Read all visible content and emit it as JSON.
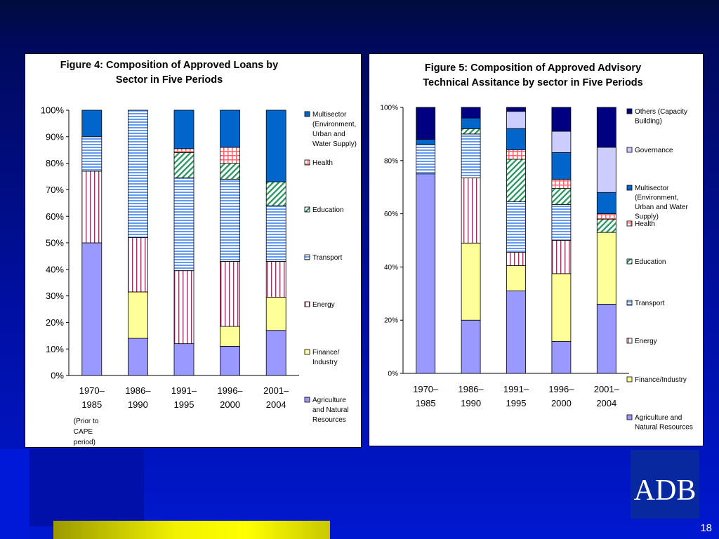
{
  "slide": {
    "number": "18",
    "logo_text": "ADB"
  },
  "chart_data": [
    {
      "type": "bar",
      "stacked": true,
      "title": "Figure 4: Composition of Approved Loans by Sector in Five Periods",
      "title_lines": [
        "Figure 4: Composition of Approved Loans by",
        "Sector in Five Periods"
      ],
      "categories": [
        "1970–1985",
        "1986–1990",
        "1991–1995",
        "1996–2000",
        "2001–2004"
      ],
      "category_lines": [
        [
          "1970–",
          "1985"
        ],
        [
          "1986–",
          "1990"
        ],
        [
          "1991–",
          "1995"
        ],
        [
          "1996–",
          "2000"
        ],
        [
          "2001–",
          "2004"
        ]
      ],
      "category_note": [
        "(Prior to",
        "CAPE",
        "period)"
      ],
      "ylim": [
        0,
        100
      ],
      "yticks": [
        "0%",
        "10%",
        "20%",
        "30%",
        "40%",
        "50%",
        "60%",
        "70%",
        "80%",
        "90%",
        "100%"
      ],
      "grid": false,
      "legend_position": "right",
      "series": [
        {
          "name": "Agriculture and Natural Resources",
          "legend_lines": [
            "Agriculture",
            "and Natural",
            "Resources"
          ],
          "color": "#9999ff",
          "pattern": "solid",
          "values": [
            50,
            14,
            12,
            11,
            17
          ]
        },
        {
          "name": "Finance/ Industry",
          "legend_lines": [
            "Finance/",
            "Industry"
          ],
          "color": "#ffff99",
          "pattern": "solid",
          "values": [
            0,
            17.5,
            0,
            7.5,
            12.5
          ]
        },
        {
          "name": "Energy",
          "legend_lines": [
            "Energy"
          ],
          "color": "#993366",
          "pattern": "vlines",
          "values": [
            27,
            20.5,
            27.5,
            24.5,
            13.5
          ]
        },
        {
          "name": "Transport",
          "legend_lines": [
            "Transport"
          ],
          "color": "#6699ee",
          "pattern": "hlines",
          "values": [
            13,
            48,
            35,
            31,
            21
          ]
        },
        {
          "name": "Education",
          "legend_lines": [
            "Education"
          ],
          "color": "#339966",
          "pattern": "diag",
          "values": [
            0,
            0,
            9.5,
            6,
            9
          ]
        },
        {
          "name": "Health",
          "legend_lines": [
            "Health"
          ],
          "color": "#ff6666",
          "pattern": "grid",
          "values": [
            0,
            0,
            1.5,
            6,
            0
          ]
        },
        {
          "name": "Multisector (Environment, Urban and Water Supply)",
          "legend_lines": [
            "Multisector",
            "(Environment,",
            "Urban and",
            "Water Supply)"
          ],
          "color": "#0066cc",
          "pattern": "solid",
          "values": [
            10,
            0,
            14.5,
            14,
            27
          ]
        }
      ]
    },
    {
      "type": "bar",
      "stacked": true,
      "title": "Figure 5: Composition of Approved Advisory Technical Assitance by sector in Five Periods",
      "title_lines": [
        "Figure 5: Composition of Approved Advisory",
        "Technical Assitance by sector in Five Periods"
      ],
      "categories": [
        "1970–1985",
        "1986–1990",
        "1991–1995",
        "1996–2000",
        "2001–2004"
      ],
      "category_lines": [
        [
          "1970–",
          "1985"
        ],
        [
          "1986–",
          "1990"
        ],
        [
          "1991–",
          "1995"
        ],
        [
          "1996–",
          "2000"
        ],
        [
          "2001–",
          "2004"
        ]
      ],
      "ylim": [
        0,
        100
      ],
      "yticks": [
        "0%",
        "20%",
        "40%",
        "60%",
        "80%",
        "100%"
      ],
      "grid": false,
      "legend_position": "right",
      "series": [
        {
          "name": "Agriculture and Natural Resources",
          "legend_lines": [
            "Agriculture and",
            "Natural Resources"
          ],
          "color": "#9999ff",
          "pattern": "solid",
          "values": [
            75,
            20,
            31,
            12,
            26
          ]
        },
        {
          "name": "Finance/Industry",
          "legend_lines": [
            "Finance/Industry"
          ],
          "color": "#ffff99",
          "pattern": "solid",
          "values": [
            0,
            29,
            9.5,
            25.5,
            27
          ]
        },
        {
          "name": "Energy",
          "legend_lines": [
            "Energy"
          ],
          "color": "#993366",
          "pattern": "vlines",
          "values": [
            0,
            24.5,
            5,
            12.5,
            0
          ]
        },
        {
          "name": "Transport",
          "legend_lines": [
            "Transport"
          ],
          "color": "#6699ee",
          "pattern": "hlines",
          "values": [
            11,
            16.5,
            19,
            13.5,
            0
          ]
        },
        {
          "name": "Education",
          "legend_lines": [
            "Education"
          ],
          "color": "#339966",
          "pattern": "diag",
          "values": [
            0,
            2,
            16,
            6,
            5
          ]
        },
        {
          "name": "Health",
          "legend_lines": [
            "Health"
          ],
          "color": "#ff6666",
          "pattern": "grid",
          "values": [
            0,
            0,
            3.5,
            3.5,
            2
          ]
        },
        {
          "name": "Multisector (Environment, Urban and Water Supply)",
          "legend_lines": [
            "Multisector",
            "(Environment,",
            "Urban and Water",
            "Supply)"
          ],
          "color": "#0066cc",
          "pattern": "solid",
          "values": [
            2,
            4,
            8,
            10,
            8
          ]
        },
        {
          "name": "Governance",
          "legend_lines": [
            "Governance"
          ],
          "color": "#ccccff",
          "pattern": "solid",
          "values": [
            0,
            0,
            6.5,
            8,
            17
          ]
        },
        {
          "name": "Others (Capacity Building)",
          "legend_lines": [
            "Others (Capacity",
            "Building)"
          ],
          "color": "#000080",
          "pattern": "solid",
          "values": [
            12,
            4,
            1.5,
            9,
            15
          ]
        }
      ]
    }
  ]
}
